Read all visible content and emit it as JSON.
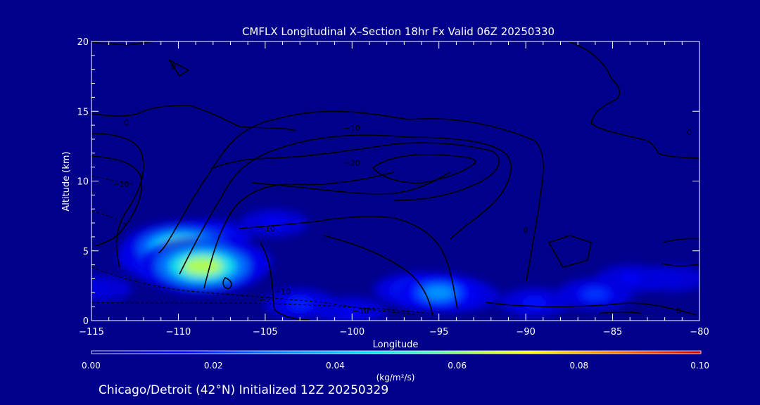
{
  "chart_data": {
    "type": "heatmap",
    "title": "CMFLX Longitudinal X–Section 18hr  Fx Valid 06Z 20250330",
    "xlabel": "Longitude",
    "ylabel": "Altitude (km)",
    "xlim": [
      -115,
      -80
    ],
    "ylim": [
      0,
      20
    ],
    "x_ticks": [
      -115,
      -110,
      -105,
      -100,
      -95,
      -90,
      -85,
      -80
    ],
    "x_tick_labels": [
      "−115",
      "−110",
      "−105",
      "−100",
      "−95",
      "−90",
      "−85",
      "−80"
    ],
    "y_ticks": [
      0,
      5,
      10,
      15,
      20
    ],
    "y_tick_labels": [
      "0",
      "5",
      "10",
      "15",
      "20"
    ],
    "colorbar": {
      "label": "(kg/m²/s)",
      "min": 0.0,
      "max": 0.1,
      "ticks": [
        0.0,
        0.02,
        0.04,
        0.06,
        0.08,
        0.1
      ],
      "tick_labels": [
        "0.00",
        "0.02",
        "0.04",
        "0.06",
        "0.08",
        "0.10"
      ]
    },
    "flux_cells": [
      {
        "lon": -109.8,
        "alt": 5.2,
        "value": 0.06
      },
      {
        "lon": -108.6,
        "alt": 3.9,
        "value": 0.065
      },
      {
        "lon": -110.5,
        "alt": 4.3,
        "value": 0.04
      },
      {
        "lon": -107.0,
        "alt": 4.2,
        "value": 0.03
      },
      {
        "lon": -108.0,
        "alt": 6.0,
        "value": 0.025
      },
      {
        "lon": -111.5,
        "alt": 4.6,
        "value": 0.018
      },
      {
        "lon": -104.5,
        "alt": 7.0,
        "value": 0.015
      },
      {
        "lon": -95.0,
        "alt": 2.0,
        "value": 0.035
      },
      {
        "lon": -96.5,
        "alt": 2.2,
        "value": 0.025
      },
      {
        "lon": -93.5,
        "alt": 1.8,
        "value": 0.018
      },
      {
        "lon": -89.5,
        "alt": 1.3,
        "value": 0.018
      },
      {
        "lon": -86.0,
        "alt": 1.9,
        "value": 0.022
      },
      {
        "lon": -84.0,
        "alt": 3.0,
        "value": 0.015
      },
      {
        "lon": -81.5,
        "alt": 3.0,
        "value": 0.012
      },
      {
        "lon": -114.5,
        "alt": 2.3,
        "value": 0.012
      },
      {
        "lon": -103.0,
        "alt": 1.2,
        "value": 0.02
      },
      {
        "lon": -100.0,
        "alt": 0.7,
        "value": 0.015
      }
    ],
    "contour_labels": [
      {
        "text": "0",
        "lon": -110.3,
        "alt": 18.2
      },
      {
        "text": "0",
        "lon": -113.0,
        "alt": 14.2
      },
      {
        "text": "0",
        "lon": -80.6,
        "alt": 13.5
      },
      {
        "text": "0",
        "lon": -90.0,
        "alt": 6.5
      },
      {
        "text": "0",
        "lon": -81.2,
        "alt": 0.7
      },
      {
        "text": "−10",
        "lon": -100.0,
        "alt": 13.8
      },
      {
        "text": "−10",
        "lon": -113.3,
        "alt": 9.8
      },
      {
        "text": "−10",
        "lon": -104.9,
        "alt": 6.6
      },
      {
        "text": "−10",
        "lon": -104.0,
        "alt": 2.1
      },
      {
        "text": "−10",
        "lon": -99.5,
        "alt": 0.7
      },
      {
        "text": "−20",
        "lon": -100.0,
        "alt": 11.3
      },
      {
        "text": "−2",
        "lon": -105.0,
        "alt": 1.5
      }
    ]
  },
  "footer": {
    "caption": "Chicago/Detroit (42°N) Initialized 12Z 20250329"
  },
  "colors": {
    "background": "#00008b",
    "frame": "#ffffff",
    "contour": "#000000"
  }
}
